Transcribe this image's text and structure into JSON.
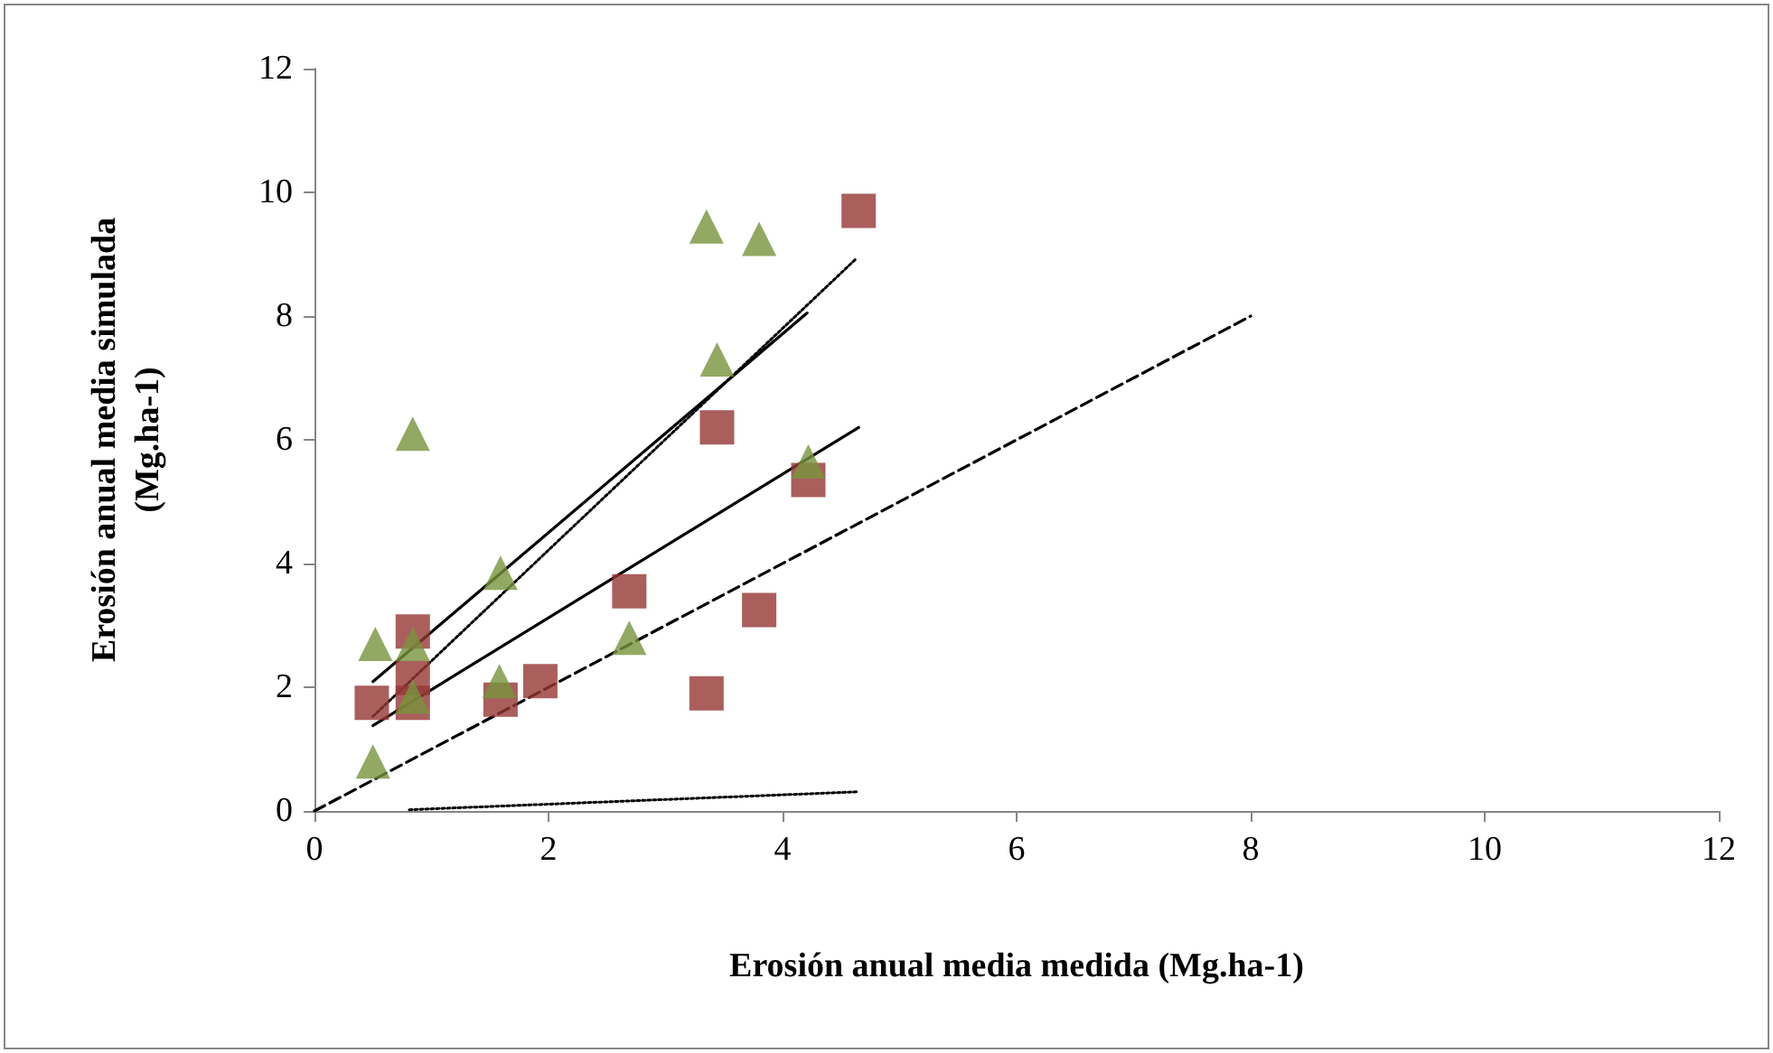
{
  "chart_data": {
    "type": "scatter",
    "xlabel": "Erosión anual media medida (Mg.ha-1)",
    "ylabel": "Erosión anual media simulada\n(Mg.ha-1)",
    "xlim": [
      0,
      12
    ],
    "ylim": [
      0,
      12
    ],
    "xticks": [
      0,
      2,
      4,
      6,
      8,
      10,
      12
    ],
    "yticks": [
      0,
      2,
      4,
      6,
      8,
      10,
      12
    ],
    "grid": false,
    "series": [
      {
        "marker": "square",
        "color": "#953735",
        "x": [
          0.49,
          0.84,
          0.84,
          0.84,
          1.59,
          1.93,
          2.69,
          3.35,
          3.44,
          3.8,
          4.22,
          4.65
        ],
        "values": [
          1.75,
          2.9,
          2.15,
          1.75,
          1.8,
          2.1,
          3.55,
          1.9,
          6.2,
          3.25,
          5.35,
          9.7
        ]
      },
      {
        "marker": "triangle",
        "color": "#77933c",
        "x": [
          0.52,
          0.5,
          0.84,
          0.84,
          0.84,
          1.59,
          1.58,
          2.69,
          3.35,
          3.8,
          3.44,
          4.22
        ],
        "values": [
          2.7,
          0.8,
          6.1,
          2.7,
          1.85,
          3.85,
          2.1,
          2.8,
          9.45,
          9.25,
          7.3,
          5.65
        ]
      },
      {
        "type": "line",
        "marker": "none",
        "line_style": "dashed",
        "color": "#000000",
        "x": [
          0,
          8
        ],
        "values": [
          0,
          8
        ]
      },
      {
        "type": "line",
        "marker": "none",
        "line_style": "solid",
        "color": "#000000",
        "x": [
          0.5,
          4.21
        ],
        "values": [
          2.09,
          8.05
        ]
      },
      {
        "type": "line",
        "marker": "none",
        "line_style": "solid",
        "color": "#000000",
        "x": [
          0.5,
          4.65
        ],
        "values": [
          1.38,
          6.2
        ]
      },
      {
        "type": "line",
        "marker": "none",
        "line_style": "dotted",
        "color": "#000000",
        "x": [
          0.5,
          4.63
        ],
        "values": [
          1.53,
          8.93
        ]
      },
      {
        "type": "line",
        "marker": "none",
        "line_style": "dotted",
        "color": "#000000",
        "x": [
          0.81,
          4.65
        ],
        "values": [
          0.02,
          0.31
        ]
      }
    ]
  }
}
